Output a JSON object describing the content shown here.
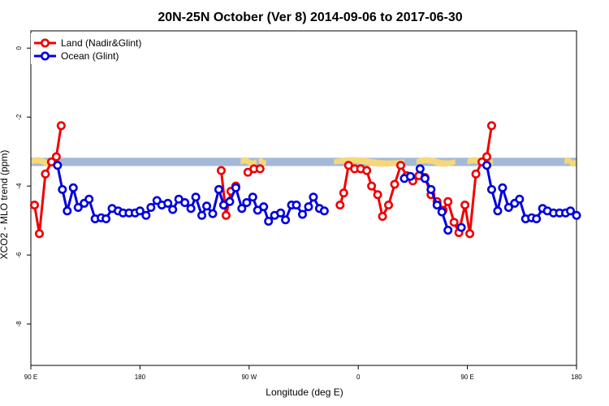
{
  "chart_data": {
    "type": "line",
    "title": "20N-25N October (Ver 8)   2014-09-06 to 2017-06-30",
    "xlabel": "Longitude (deg E)",
    "ylabel": "XCO2 - MLO trend (ppm)",
    "x_ticks": [
      {
        "value": 90,
        "label": "90 E"
      },
      {
        "value": 180,
        "label": "180"
      },
      {
        "value": 270,
        "label": "90 W"
      },
      {
        "value": 360,
        "label": "0"
      },
      {
        "value": 450,
        "label": "90 E"
      },
      {
        "value": 540,
        "label": "180"
      }
    ],
    "y_ticks": [
      {
        "value": 0,
        "label": "0"
      },
      {
        "value": -2,
        "label": "-2"
      },
      {
        "value": -4,
        "label": "-4"
      },
      {
        "value": -6,
        "label": "-6"
      },
      {
        "value": -8,
        "label": "-8"
      }
    ],
    "xlim": [
      90,
      540
    ],
    "ylim": [
      -9.2,
      0.5
    ],
    "grid": false,
    "legend_position": "top-left",
    "colors": {
      "land": "#ee0000",
      "ocean": "#0000dd",
      "map_ocean": "#a4b9d8",
      "map_land": "#f6d77a"
    },
    "map_strip": {
      "y_range": [
        -3.18,
        -3.42
      ],
      "land_ranges": [
        [
          90,
          111
        ],
        [
          263,
          276
        ],
        [
          278,
          284
        ],
        [
          340,
          398
        ],
        [
          408,
          440
        ],
        [
          450,
          471
        ],
        [
          530,
          540
        ]
      ]
    },
    "series": [
      {
        "name": "Land (Nadir&Glint)",
        "color": "#ee0000",
        "segments": [
          [
            [
              93,
              -4.55
            ],
            [
              97,
              -5.38
            ],
            [
              102,
              -3.65
            ],
            [
              107,
              -3.3
            ],
            [
              111,
              -3.15
            ],
            [
              115,
              -2.25
            ]
          ],
          [
            [
              247,
              -3.55
            ],
            [
              251,
              -4.85
            ],
            [
              255,
              -4.15
            ],
            [
              259,
              -4.0
            ]
          ],
          [
            [
              269,
              -3.6
            ],
            [
              274,
              -3.5
            ],
            [
              279,
              -3.5
            ]
          ],
          [
            [
              345,
              -4.55
            ],
            [
              348,
              -4.2
            ],
            [
              352,
              -3.4
            ],
            [
              357,
              -3.5
            ],
            [
              362,
              -3.5
            ],
            [
              367,
              -3.55
            ],
            [
              371,
              -4.0
            ],
            [
              376,
              -4.25
            ],
            [
              380,
              -4.88
            ],
            [
              385,
              -4.55
            ],
            [
              390,
              -3.95
            ],
            [
              395,
              -3.4
            ],
            [
              400,
              -3.7
            ],
            [
              405,
              -3.85
            ],
            [
              410,
              -3.7
            ],
            [
              415,
              -3.75
            ],
            [
              420,
              -4.25
            ],
            [
              425,
              -4.45
            ],
            [
              430,
              -4.7
            ],
            [
              434,
              -4.45
            ],
            [
              439,
              -5.05
            ],
            [
              443,
              -5.35
            ],
            [
              448,
              -4.55
            ],
            [
              452,
              -5.38
            ],
            [
              457,
              -3.65
            ],
            [
              462,
              -3.3
            ],
            [
              466,
              -3.15
            ],
            [
              470,
              -2.25
            ]
          ]
        ]
      },
      {
        "name": "Ocean (Glint)",
        "color": "#0000dd",
        "segments": [
          [
            [
              112,
              -3.4
            ],
            [
              116,
              -4.1
            ],
            [
              120,
              -4.72
            ],
            [
              125,
              -4.05
            ],
            [
              129,
              -4.62
            ],
            [
              134,
              -4.5
            ],
            [
              138,
              -4.38
            ],
            [
              143,
              -4.95
            ],
            [
              148,
              -4.92
            ],
            [
              152,
              -4.95
            ],
            [
              157,
              -4.65
            ],
            [
              162,
              -4.72
            ],
            [
              166,
              -4.78
            ],
            [
              171,
              -4.78
            ],
            [
              176,
              -4.78
            ],
            [
              180,
              -4.72
            ],
            [
              185,
              -4.85
            ],
            [
              189,
              -4.62
            ],
            [
              194,
              -4.42
            ],
            [
              198,
              -4.55
            ],
            [
              203,
              -4.5
            ],
            [
              207,
              -4.68
            ],
            [
              212,
              -4.38
            ],
            [
              217,
              -4.48
            ],
            [
              222,
              -4.65
            ],
            [
              226,
              -4.32
            ],
            [
              231,
              -4.85
            ],
            [
              235,
              -4.58
            ],
            [
              240,
              -4.8
            ],
            [
              245,
              -4.1
            ],
            [
              249,
              -4.55
            ],
            [
              254,
              -4.45
            ],
            [
              259,
              -4.05
            ],
            [
              264,
              -4.65
            ],
            [
              268,
              -4.48
            ],
            [
              273,
              -4.32
            ],
            [
              277,
              -4.7
            ],
            [
              282,
              -4.6
            ],
            [
              286,
              -5.02
            ],
            [
              291,
              -4.85
            ],
            [
              296,
              -4.78
            ],
            [
              300,
              -4.98
            ],
            [
              305,
              -4.55
            ],
            [
              309,
              -4.55
            ],
            [
              314,
              -4.82
            ],
            [
              319,
              -4.6
            ],
            [
              323,
              -4.32
            ],
            [
              328,
              -4.65
            ],
            [
              332,
              -4.72
            ]
          ],
          [
            [
              398,
              -3.78
            ],
            [
              403,
              -3.72
            ]
          ],
          [
            [
              411,
              -3.5
            ],
            [
              415,
              -3.78
            ],
            [
              420,
              -4.1
            ],
            [
              425,
              -4.55
            ],
            [
              429,
              -4.75
            ],
            [
              434,
              -5.28
            ]
          ],
          [
            [
              445,
              -5.2
            ]
          ],
          [
            [
              466,
              -3.4
            ],
            [
              470,
              -4.1
            ],
            [
              475,
              -4.72
            ],
            [
              479,
              -4.05
            ],
            [
              484,
              -4.62
            ],
            [
              489,
              -4.5
            ],
            [
              493,
              -4.38
            ],
            [
              498,
              -4.95
            ],
            [
              503,
              -4.92
            ],
            [
              507,
              -4.95
            ],
            [
              512,
              -4.65
            ],
            [
              516,
              -4.72
            ],
            [
              521,
              -4.78
            ],
            [
              526,
              -4.78
            ],
            [
              531,
              -4.78
            ],
            [
              535,
              -4.72
            ],
            [
              540,
              -4.85
            ]
          ]
        ]
      }
    ]
  }
}
